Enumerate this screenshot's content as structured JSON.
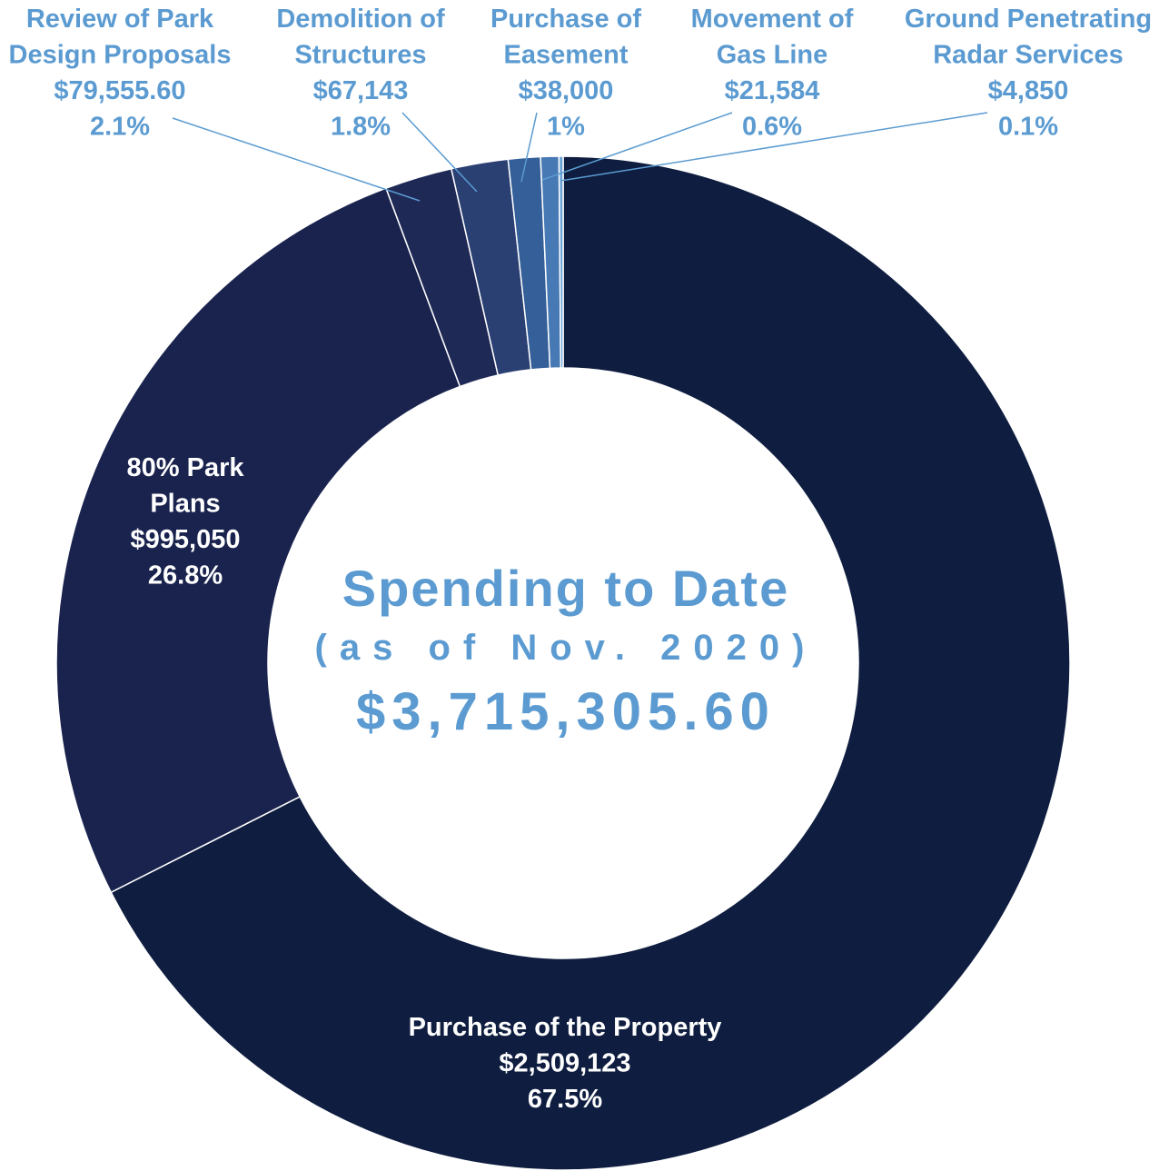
{
  "chart_data": {
    "type": "pie",
    "title": "Spending to Date",
    "subtitle": "(as of Nov. 2020)",
    "total": "$3,715,305.60",
    "colors": {
      "label_light": "#5b9bd1",
      "label_white": "#ffffff",
      "separator": "#ffffff",
      "leader": "#5b9bd1"
    },
    "slices": [
      {
        "name": "Purchase of the Property",
        "value": 2509123,
        "value_label": "$2,509,123",
        "percent": "67.5%",
        "color": "#0f1e40",
        "label_style": "inside"
      },
      {
        "name": "80% Park Plans",
        "value": 995050,
        "value_label": "$995,050",
        "percent": "26.8%",
        "color": "#19234e",
        "label_style": "inside"
      },
      {
        "name": "Review of Park Design Proposals",
        "value": 79555.6,
        "value_label": "$79,555.60",
        "percent": "2.1%",
        "color": "#1f2956",
        "label_style": "outside"
      },
      {
        "name": "Demolition of Structures",
        "value": 67143,
        "value_label": "$67,143",
        "percent": "1.8%",
        "color": "#2a3f72",
        "label_style": "outside"
      },
      {
        "name": "Purchase of Easement",
        "value": 38000,
        "value_label": "$38,000",
        "percent": "1%",
        "color": "#345f98",
        "label_style": "outside"
      },
      {
        "name": "Movement of Gas Line",
        "value": 21584,
        "value_label": "$21,584",
        "percent": "0.6%",
        "color": "#4779b4",
        "label_style": "outside"
      },
      {
        "name": "Ground Penetrating Radar Services",
        "value": 4850,
        "value_label": "$4,850",
        "percent": "0.1%",
        "color": "#6aa3d6",
        "label_style": "outside"
      }
    ]
  }
}
